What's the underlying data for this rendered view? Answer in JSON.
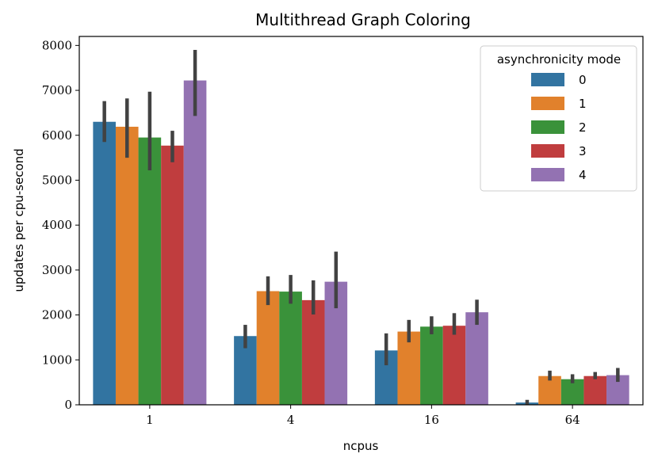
{
  "chart_data": {
    "type": "bar",
    "title": "Multithread Graph Coloring",
    "xlabel": "ncpus",
    "ylabel": "updates per cpu-second",
    "categories": [
      "1",
      "4",
      "16",
      "64"
    ],
    "ylim": [
      0,
      8200
    ],
    "yticks": [
      0,
      1000,
      2000,
      3000,
      4000,
      5000,
      6000,
      7000,
      8000
    ],
    "grid": false,
    "legend": {
      "title": "asynchronicity mode",
      "placement": "top-right"
    },
    "series": [
      {
        "name": "0",
        "color": "#3274a1",
        "values": [
          6300,
          1530,
          1210,
          50
        ],
        "err_low": [
          5850,
          1260,
          880,
          0
        ],
        "err_high": [
          6760,
          1780,
          1590,
          110
        ]
      },
      {
        "name": "1",
        "color": "#e1812c",
        "values": [
          6190,
          2530,
          1630,
          640
        ],
        "err_low": [
          5500,
          2220,
          1390,
          540
        ],
        "err_high": [
          6820,
          2860,
          1890,
          760
        ]
      },
      {
        "name": "2",
        "color": "#3a923a",
        "values": [
          5950,
          2520,
          1740,
          570
        ],
        "err_low": [
          5220,
          2250,
          1570,
          480
        ],
        "err_high": [
          6970,
          2890,
          1970,
          680
        ]
      },
      {
        "name": "3",
        "color": "#c03d3e",
        "values": [
          5770,
          2330,
          1760,
          640
        ],
        "err_low": [
          5400,
          2010,
          1560,
          570
        ],
        "err_high": [
          6100,
          2770,
          2040,
          730
        ]
      },
      {
        "name": "4",
        "color": "#9372b2",
        "values": [
          7220,
          2740,
          2060,
          660
        ],
        "err_low": [
          6430,
          2150,
          1780,
          510
        ],
        "err_high": [
          7900,
          3410,
          2340,
          820
        ]
      }
    ]
  }
}
